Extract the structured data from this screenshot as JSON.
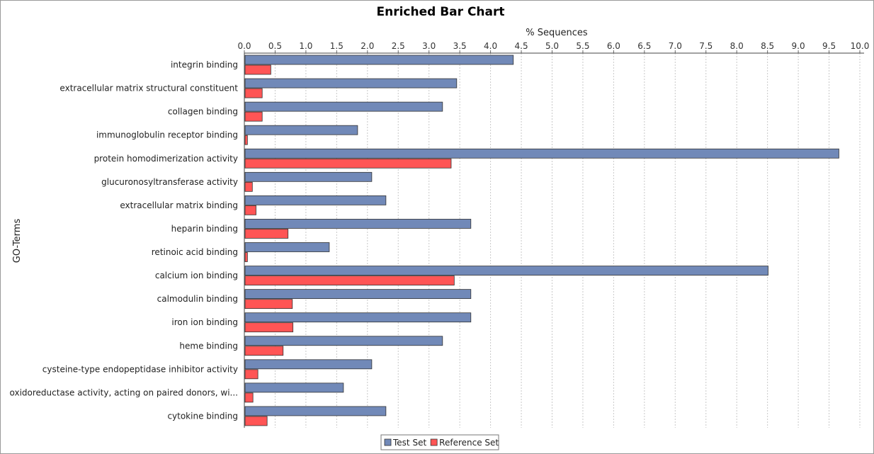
{
  "chart_data": {
    "type": "bar",
    "orientation": "horizontal",
    "title": "Enriched Bar Chart",
    "xlabel": "% Sequences",
    "ylabel": "GO-Terms",
    "xlim": [
      0,
      10
    ],
    "x_ticks": [
      "0.0",
      "0.5",
      "1.0",
      "1.5",
      "2.0",
      "2.5",
      "3.0",
      "3.5",
      "4.0",
      "4.5",
      "5.0",
      "5.5",
      "6.0",
      "6.5",
      "7.0",
      "7.5",
      "8.0",
      "8.5",
      "9.0",
      "9.5",
      "10.0"
    ],
    "grid": "vertical dashed",
    "legend_position": "bottom-center",
    "categories": [
      "integrin binding",
      "extracellular matrix structural constituent",
      "collagen binding",
      "immunoglobulin receptor binding",
      "protein homodimerization activity",
      "glucuronosyltransferase activity",
      "extracellular matrix binding",
      "heparin binding",
      "retinoic acid binding",
      "calcium ion binding",
      "calmodulin binding",
      "iron ion binding",
      "heme binding",
      "cysteine-type endopeptidase inhibitor activity",
      "oxidoreductase activity, acting on paired donors, wi...",
      "cytokine binding"
    ],
    "series": [
      {
        "name": "Test Set",
        "color": "#7189b8",
        "values": [
          4.37,
          3.45,
          3.22,
          1.84,
          9.66,
          2.07,
          2.3,
          3.68,
          1.38,
          8.51,
          3.68,
          3.68,
          3.22,
          2.07,
          1.61,
          2.3
        ]
      },
      {
        "name": "Reference Set",
        "color": "#ff5555",
        "values": [
          0.43,
          0.29,
          0.29,
          0.05,
          3.36,
          0.13,
          0.19,
          0.71,
          0.05,
          3.41,
          0.78,
          0.79,
          0.63,
          0.22,
          0.14,
          0.37
        ]
      }
    ]
  }
}
